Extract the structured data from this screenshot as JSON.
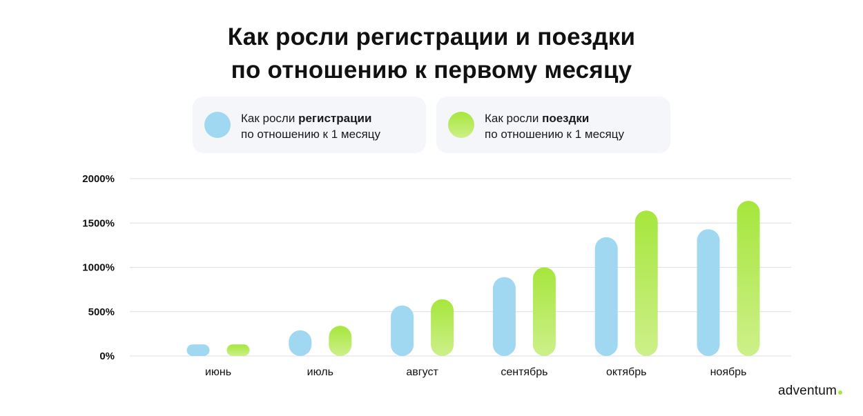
{
  "chart_data": {
    "type": "bar",
    "title": [
      "Как росли регистрации и поездки",
      "по отношению к первому месяцу"
    ],
    "categories": [
      "июнь",
      "июль",
      "август",
      "сентябрь",
      "октябрь",
      "ноябрь"
    ],
    "series": [
      {
        "label_plain": "Как росли ",
        "label_bold": "регистрации",
        "label_line2": "по отношению к 1 месяцу",
        "values": [
          130,
          290,
          570,
          890,
          1340,
          1430
        ],
        "color": "#9fd8f0"
      },
      {
        "label_plain": "Как росли ",
        "label_bold": "поездки",
        "label_line2": "по отношению к 1 месяцу",
        "values": [
          130,
          340,
          640,
          1000,
          1640,
          1750
        ],
        "color_top": "#a6e63c",
        "color_bottom": "#cdf08a"
      }
    ],
    "ylim": [
      0,
      2000
    ],
    "yticks": [
      0,
      500,
      1000,
      1500,
      2000
    ],
    "ytick_labels": [
      "0%",
      "500%",
      "1000%",
      "1500%",
      "2000%"
    ],
    "grid": true,
    "legend_position": "top"
  },
  "brand": {
    "name": "adventum",
    "dot_color": "#a6e63c"
  }
}
